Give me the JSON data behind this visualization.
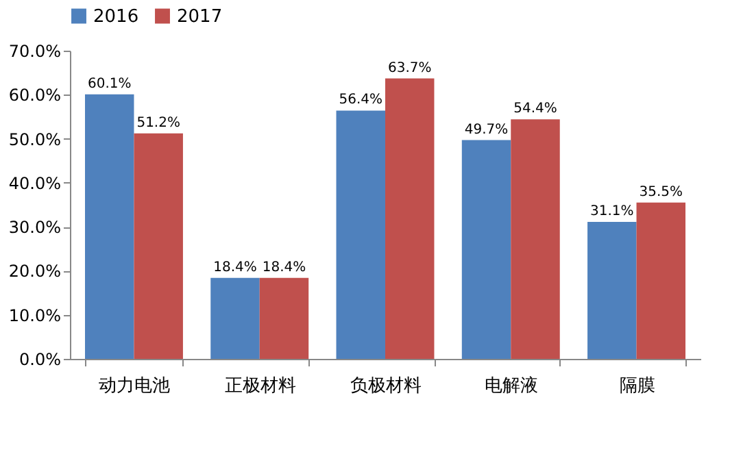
{
  "chart_data": {
    "type": "bar",
    "categories": [
      "动力电池",
      "正极材料",
      "负极材料",
      "电解液",
      "隔膜"
    ],
    "series": [
      {
        "name": "2016",
        "color": "#4f81bd",
        "values": [
          60.1,
          18.4,
          56.4,
          49.7,
          31.1
        ],
        "value_labels": [
          "60.1%",
          "18.4%",
          "56.4%",
          "49.7%",
          "31.1%"
        ]
      },
      {
        "name": "2017",
        "color": "#c0504d",
        "values": [
          51.2,
          18.4,
          63.7,
          54.4,
          35.5
        ],
        "value_labels": [
          "51.2%",
          "18.4%",
          "63.7%",
          "54.4%",
          "35.5%"
        ]
      }
    ],
    "ylim": [
      0,
      70
    ],
    "yticks": [
      {
        "value": 0,
        "label": "0.0%"
      },
      {
        "value": 10,
        "label": "10.0%"
      },
      {
        "value": 20,
        "label": "20.0%"
      },
      {
        "value": 30,
        "label": "30.0%"
      },
      {
        "value": 40,
        "label": "40.0%"
      },
      {
        "value": 50,
        "label": "50.0%"
      },
      {
        "value": 60,
        "label": "60.0%"
      },
      {
        "value": 70,
        "label": "70.0%"
      }
    ],
    "grid": false,
    "legend": "top"
  }
}
